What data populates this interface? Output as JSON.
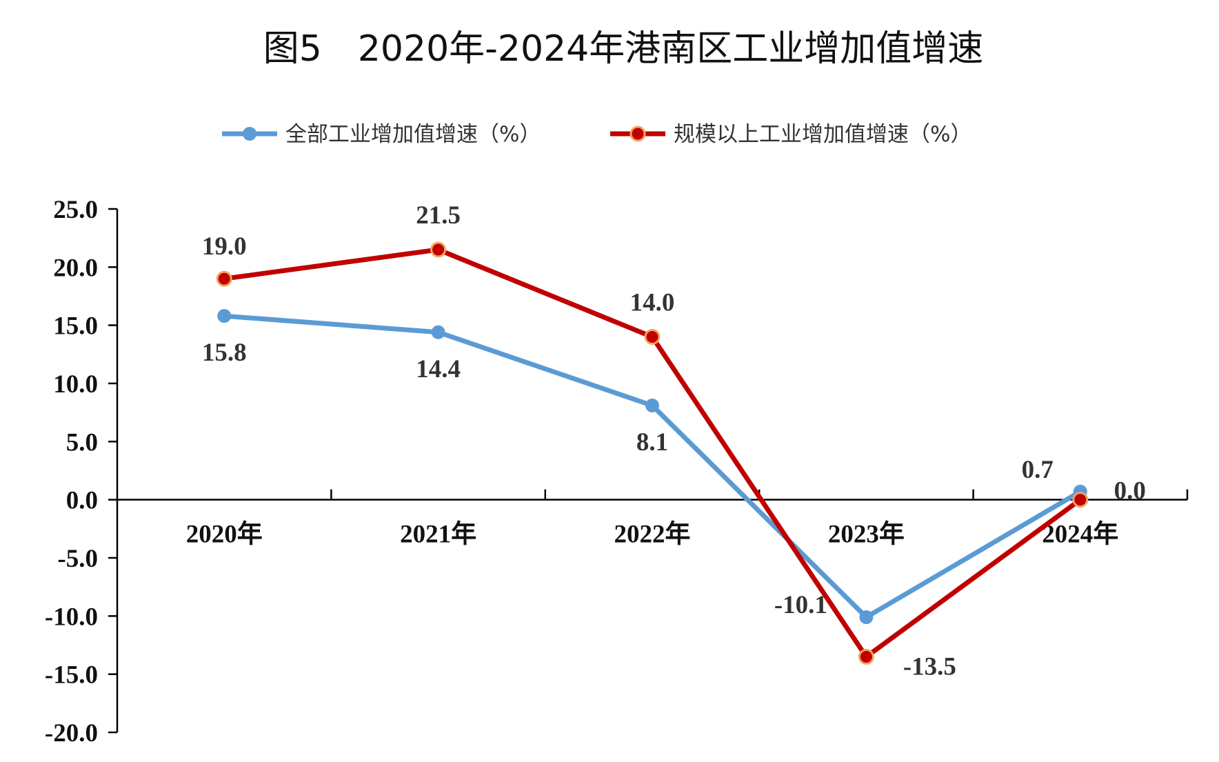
{
  "chart_data": {
    "type": "line",
    "title": "图5　2020年-2024年港南区工业增加值增速",
    "categories": [
      "2020年",
      "2021年",
      "2022年",
      "2023年",
      "2024年"
    ],
    "ylim": [
      -20.0,
      25.0
    ],
    "ytick_labels": [
      "25.0",
      "20.0",
      "15.0",
      "10.0",
      "5.0",
      "0.0",
      "-5.0",
      "-10.0",
      "-15.0",
      "-20.0"
    ],
    "grid": false,
    "legend_position": "top",
    "series": [
      {
        "name": "全部工业增加值增速（%）",
        "color": "#5B9BD5",
        "values": [
          15.8,
          14.4,
          8.1,
          -10.1,
          0.7
        ],
        "labels": [
          "15.8",
          "14.4",
          "8.1",
          "-10.1",
          "0.7"
        ]
      },
      {
        "name": "规模以上工业增加值增速（%）",
        "color": "#C00000",
        "marker_edge_color": "#F4A460",
        "values": [
          19.0,
          21.5,
          14.0,
          -13.5,
          0.0
        ],
        "labels": [
          "19.0",
          "21.5",
          "14.0",
          "-13.5",
          "0.0"
        ]
      }
    ]
  }
}
